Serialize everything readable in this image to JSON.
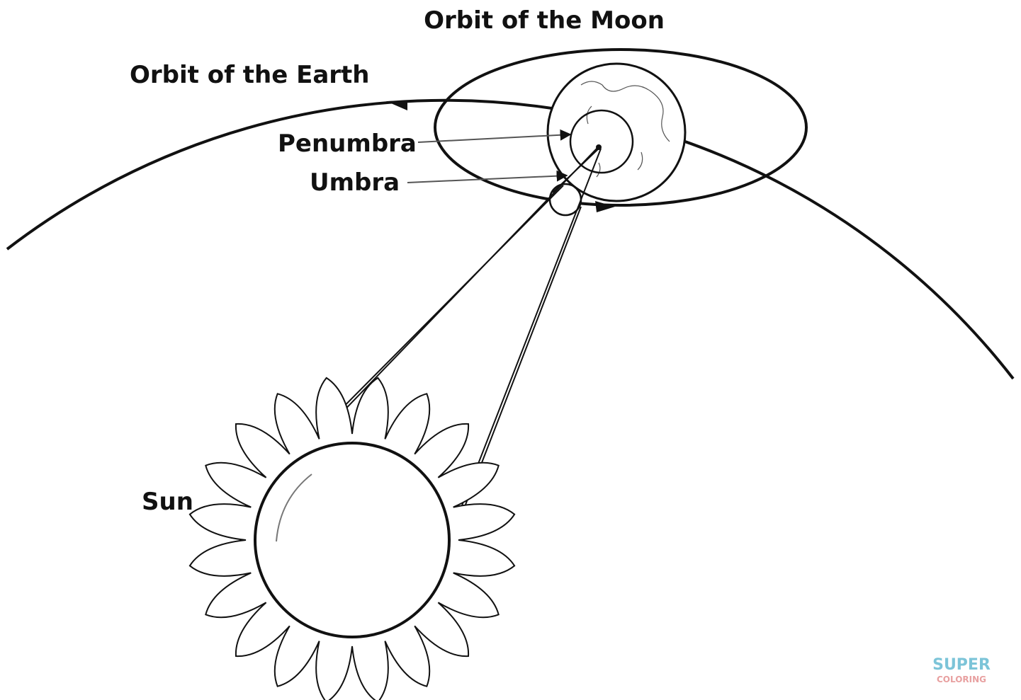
{
  "labels": {
    "moon_orbit": "Orbit of the Moon",
    "earth_orbit": "Orbit of the Earth",
    "penumbra": "Penumbra",
    "umbra": "Umbra",
    "sun": "Sun"
  },
  "watermark": {
    "line1": "SUPER",
    "line2": "COLORING"
  }
}
